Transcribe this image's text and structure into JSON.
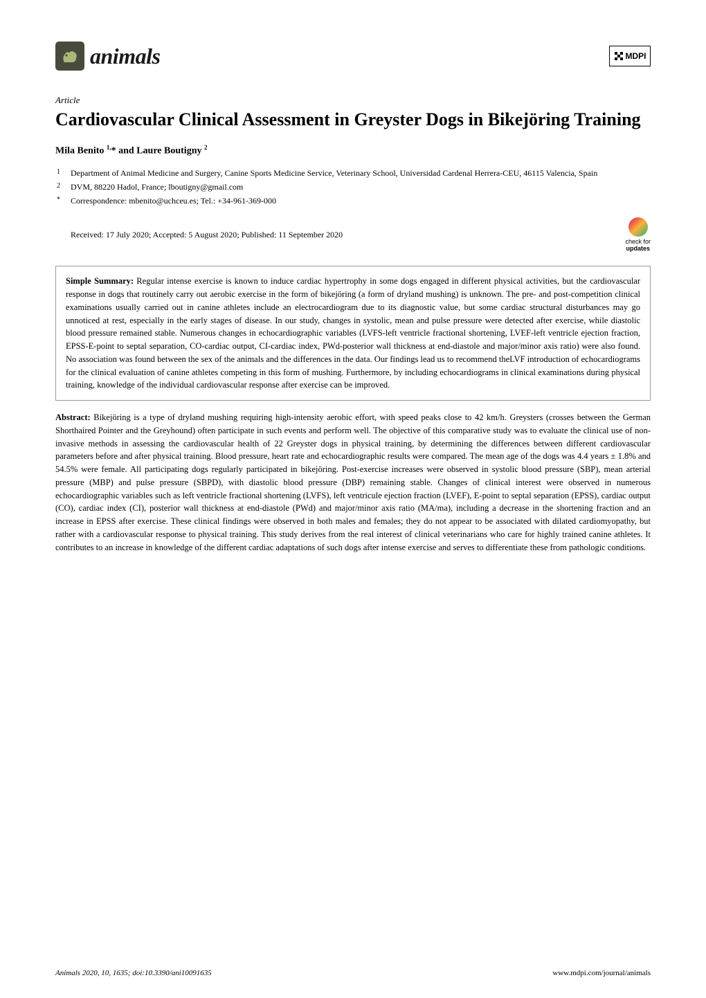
{
  "logo": {
    "journal_name": "animals",
    "publisher": "MDPI"
  },
  "article": {
    "type": "Article",
    "title": "Cardiovascular Clinical Assessment in Greyster Dogs in Bikejöring Training",
    "authors_html": "Mila Benito <sup>1,</sup>* and Laure Boutigny <sup>2</sup>",
    "affiliations": [
      {
        "num": "1",
        "text": "Department of Animal Medicine and Surgery, Canine Sports Medicine Service, Veterinary School, Universidad Cardenal Herrera-CEU, 46115 Valencia, Spain"
      },
      {
        "num": "2",
        "text": "DVM, 88220 Hadol, France; lboutigny@gmail.com"
      },
      {
        "num": "*",
        "text": "Correspondence: mbenito@uchceu.es; Tel.: +34-961-369-000"
      }
    ],
    "dates": "Received: 17 July 2020; Accepted: 5 August 2020; Published: 11 September 2020",
    "check_updates_label1": "check for",
    "check_updates_label2": "updates"
  },
  "simple_summary": {
    "label": "Simple Summary:",
    "text": " Regular intense exercise is known to induce cardiac hypertrophy in some dogs engaged in different physical activities, but the cardiovascular response in dogs that routinely carry out aerobic exercise in the form of bikejöring (a form of dryland mushing) is unknown. The pre- and post-competition clinical examinations usually carried out in canine athletes include an electrocardiogram due to its diagnostic value, but some cardiac structural disturbances may go unnoticed at rest, especially in the early stages of disease. In our study, changes in systolic, mean and pulse pressure were detected after exercise, while diastolic blood pressure remained stable. Numerous changes in echocardiographic variables (LVFS-left ventricle fractional shortening, LVEF-left ventricle ejection fraction, EPSS-E-point to septal separation, CO-cardiac output, CI-cardiac index, PWd-posterior wall thickness at end-diastole and major/minor axis ratio) were also found. No association was found between the sex of the animals and the differences in the data. Our findings lead us to recommend theLVF introduction of echocardiograms for the clinical evaluation of canine athletes competing in this form of mushing. Furthermore, by including echocardiograms in clinical examinations during physical training, knowledge of the individual cardiovascular response after exercise can be improved."
  },
  "abstract": {
    "label": "Abstract:",
    "text": " Bikejöring is a type of dryland mushing requiring high-intensity aerobic effort, with speed peaks close to 42 km/h. Greysters (crosses between the German Shorthaired Pointer and the Greyhound) often participate in such events and perform well. The objective of this comparative study was to evaluate the clinical use of non-invasive methods in assessing the cardiovascular health of 22 Greyster dogs in physical training, by determining the differences between different cardiovascular parameters before and after physical training. Blood pressure, heart rate and echocardiographic results were compared. The mean age of the dogs was 4.4 years ± 1.8% and 54.5% were female. All participating dogs regularly participated in bikejöring. Post-exercise increases were observed in systolic blood pressure (SBP), mean arterial pressure (MBP) and pulse pressure (SBPD), with diastolic blood pressure (DBP) remaining stable. Changes of clinical interest were observed in numerous echocardiographic variables such as left ventricle fractional shortening (LVFS), left ventricule ejection fraction (LVEF), E-point to septal separation (EPSS), cardiac output (CO), cardiac index (CI), posterior wall thickness at end-diastole (PWd) and major/minor axis ratio (MA/ma), including a decrease in the shortening fraction and an increase in EPSS after exercise. These clinical findings were observed in both males and females; they do not appear to be associated with dilated cardiomyopathy, but rather with a cardiovascular response to physical training. This study derives from the real interest of clinical veterinarians who care for highly trained canine athletes. It contributes to an increase in knowledge of the different cardiac adaptations of such dogs after intense exercise and serves to differentiate these from pathologic conditions."
  },
  "footer": {
    "left": "Animals 2020, 10, 1635; doi:10.3390/ani10091635",
    "right": "www.mdpi.com/journal/animals"
  }
}
